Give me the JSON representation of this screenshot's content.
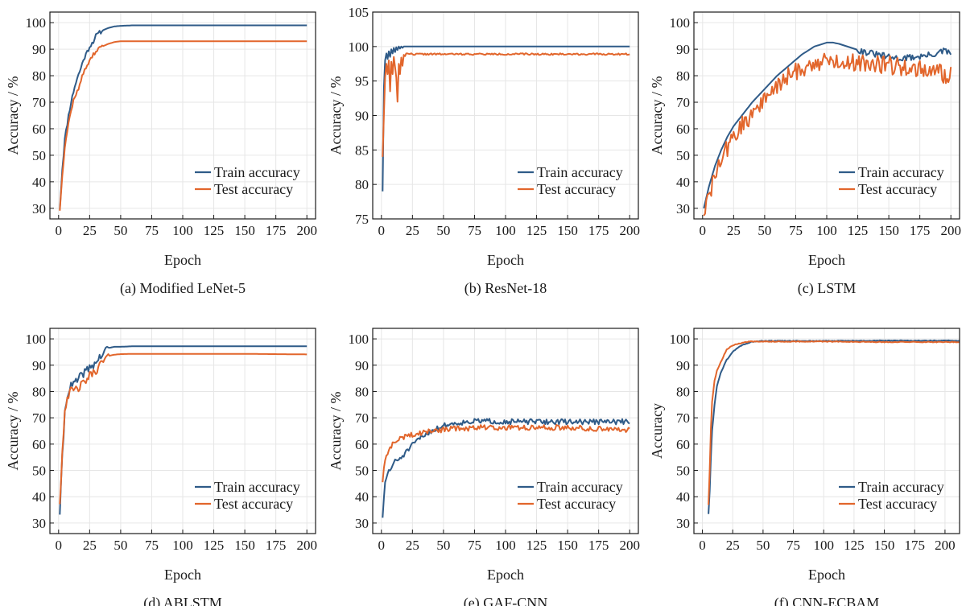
{
  "colors": {
    "train": "#2f5b88",
    "test": "#e2662c",
    "grid": "#e6e6e6",
    "axis": "#1a1a1a"
  },
  "chart_data": [
    {
      "id": "a",
      "type": "line",
      "caption": "(a) Modified LeNet-5",
      "xlabel": "Epoch",
      "ylabel": "Accuracy / %",
      "xlim": [
        -7,
        207
      ],
      "ylim": [
        26,
        104
      ],
      "xticks": [
        0,
        25,
        50,
        75,
        100,
        125,
        150,
        175,
        200
      ],
      "yticks": [
        30,
        40,
        50,
        60,
        70,
        80,
        90,
        100
      ],
      "legend": "lower-right",
      "series": [
        {
          "name": "Train accuracy",
          "x": [
            1,
            3,
            5,
            8,
            10,
            13,
            15,
            18,
            20,
            23,
            25,
            28,
            30,
            35,
            40,
            45,
            50,
            60,
            80,
            100,
            150,
            200
          ],
          "values": [
            30,
            45,
            56,
            65,
            70,
            76,
            79,
            83,
            86,
            89,
            91,
            93,
            95,
            97,
            98,
            98.6,
            98.8,
            99,
            99,
            99,
            99,
            99
          ],
          "noise": 0.8,
          "noiseUntil": 35,
          "seed": 11
        },
        {
          "name": "Test accuracy",
          "x": [
            1,
            3,
            5,
            8,
            10,
            13,
            15,
            18,
            20,
            23,
            25,
            28,
            30,
            35,
            40,
            45,
            50,
            60,
            80,
            100,
            150,
            200
          ],
          "values": [
            29.5,
            43,
            53,
            62,
            67,
            72,
            74,
            78,
            81,
            84,
            86,
            88,
            89,
            91,
            92,
            92.7,
            93,
            93,
            93,
            93,
            93,
            93
          ],
          "noise": 0.8,
          "noiseUntil": 35,
          "seed": 12
        }
      ]
    },
    {
      "id": "b",
      "type": "line",
      "caption": "(b) ResNet-18",
      "xlabel": "Epoch",
      "ylabel": "Accuracy / %",
      "xlim": [
        -7,
        207
      ],
      "ylim": [
        75,
        105
      ],
      "xticks": [
        0,
        25,
        50,
        75,
        100,
        125,
        150,
        175,
        200
      ],
      "yticks": [
        75,
        80,
        85,
        90,
        95,
        100,
        105
      ],
      "legend": "lower-right",
      "series": [
        {
          "name": "Train accuracy",
          "x": [
            1,
            2,
            3,
            4,
            5,
            6,
            7,
            8,
            9,
            10,
            11,
            12,
            13,
            14,
            15,
            16,
            17,
            18,
            19,
            20,
            22,
            25,
            50,
            100,
            150,
            200
          ],
          "values": [
            79,
            94,
            98,
            99,
            98.2,
            99.3,
            98.5,
            99.6,
            99,
            99.8,
            99.2,
            99.9,
            99.5,
            100,
            99.7,
            100,
            99.8,
            100,
            100,
            100,
            100,
            100,
            100,
            100,
            100,
            100
          ],
          "noise": 0,
          "seed": 21
        },
        {
          "name": "Test accuracy",
          "x": [
            1,
            2,
            3,
            4,
            5,
            6,
            7,
            8,
            9,
            10,
            11,
            12,
            13,
            14,
            15,
            16,
            17,
            18,
            19,
            20,
            22,
            25,
            50,
            100,
            150,
            200
          ],
          "values": [
            84,
            90,
            95.5,
            97.5,
            96,
            98,
            93.5,
            97.8,
            96,
            98.5,
            97,
            95.5,
            92,
            97.5,
            96,
            98.4,
            97.2,
            98.8,
            98.6,
            99,
            99,
            98.9,
            98.9,
            98.9,
            98.9,
            98.9
          ],
          "noise": 0.12,
          "noiseFrom": 22,
          "seed": 22
        }
      ]
    },
    {
      "id": "c",
      "type": "line",
      "caption": "(c) LSTM",
      "xlabel": "Epoch",
      "ylabel": "Accuracy / %",
      "xlim": [
        -7,
        207
      ],
      "ylim": [
        26,
        104
      ],
      "xticks": [
        0,
        25,
        50,
        75,
        100,
        125,
        150,
        175,
        200
      ],
      "yticks": [
        30,
        40,
        50,
        60,
        70,
        80,
        90,
        100
      ],
      "legend": "lower-right",
      "series": [
        {
          "name": "Train accuracy",
          "x": [
            1,
            5,
            10,
            15,
            20,
            25,
            30,
            40,
            50,
            60,
            70,
            80,
            90,
            100,
            105,
            110,
            120,
            130,
            140,
            150,
            160,
            170,
            180,
            190,
            195,
            200
          ],
          "values": [
            30,
            38,
            46,
            52,
            57,
            61,
            64,
            70,
            75,
            80,
            84,
            88,
            91,
            92.5,
            92.5,
            92,
            90.5,
            89,
            88,
            87,
            86.5,
            87,
            87.5,
            88.5,
            89.5,
            88
          ],
          "noise": 1.2,
          "noiseFrom": 125,
          "seed": 31
        },
        {
          "name": "Test accuracy",
          "x": [
            1,
            5,
            10,
            15,
            20,
            25,
            30,
            40,
            50,
            60,
            70,
            80,
            90,
            100,
            110,
            120,
            130,
            140,
            150,
            160,
            170,
            180,
            190,
            200
          ],
          "values": [
            29,
            34,
            42,
            48,
            53,
            57,
            60,
            66,
            71,
            76,
            80,
            83,
            84.5,
            85.5,
            85.5,
            85,
            85,
            84.5,
            84,
            83.5,
            83,
            82,
            81,
            80
          ],
          "noise": 3.5,
          "seed": 32
        }
      ]
    },
    {
      "id": "d",
      "type": "line",
      "caption": "(d) ABLSTM",
      "xlabel": "Epoch",
      "ylabel": "Accuracy / %",
      "xlim": [
        -7,
        207
      ],
      "ylim": [
        26,
        104
      ],
      "xticks": [
        0,
        25,
        50,
        75,
        100,
        125,
        150,
        175,
        200
      ],
      "yticks": [
        30,
        40,
        50,
        60,
        70,
        80,
        90,
        100
      ],
      "legend": "lower-right",
      "series": [
        {
          "name": "Train accuracy",
          "x": [
            1,
            3,
            5,
            7,
            10,
            15,
            20,
            25,
            30,
            35,
            40,
            45,
            50,
            60,
            100,
            150,
            200
          ],
          "values": [
            34,
            55,
            72,
            79,
            82,
            84,
            87,
            89,
            91,
            94,
            96.5,
            97,
            97,
            97.2,
            97.2,
            97.2,
            97.2
          ],
          "noise": 1.6,
          "noiseUntil": 40,
          "seed": 41
        },
        {
          "name": "Test accuracy",
          "x": [
            1,
            3,
            5,
            7,
            10,
            15,
            20,
            25,
            30,
            35,
            40,
            45,
            50,
            60,
            100,
            150,
            200
          ],
          "values": [
            38,
            57,
            73,
            78,
            80,
            81,
            83,
            86,
            88,
            91,
            93.5,
            94,
            94.2,
            94.3,
            94.3,
            94.3,
            94.1
          ],
          "noise": 1.6,
          "noiseUntil": 40,
          "seed": 42
        }
      ]
    },
    {
      "id": "e",
      "type": "line",
      "caption": "(e) GAF-CNN",
      "xlabel": "Epoch",
      "ylabel": "Accuracy / %",
      "xlim": [
        -7,
        207
      ],
      "ylim": [
        26,
        104
      ],
      "xticks": [
        0,
        25,
        50,
        75,
        100,
        125,
        150,
        175,
        200
      ],
      "yticks": [
        30,
        40,
        50,
        60,
        70,
        80,
        90,
        100
      ],
      "legend": "lower-right",
      "series": [
        {
          "name": "Train accuracy",
          "x": [
            1,
            3,
            5,
            8,
            10,
            15,
            20,
            25,
            30,
            40,
            50,
            60,
            70,
            80,
            100,
            150,
            200
          ],
          "values": [
            32.5,
            45,
            49,
            51,
            53,
            54.5,
            57,
            59.5,
            62,
            65,
            67,
            68,
            68.5,
            68.8,
            68.5,
            68.5,
            68.5
          ],
          "noise": 1.0,
          "seed": 51
        },
        {
          "name": "Test accuracy",
          "x": [
            1,
            3,
            5,
            8,
            10,
            15,
            20,
            25,
            30,
            40,
            50,
            60,
            70,
            80,
            100,
            150,
            200
          ],
          "values": [
            46,
            54,
            57,
            59,
            60.5,
            62,
            63,
            63.5,
            64,
            65,
            65.5,
            66,
            66,
            66.3,
            66.3,
            66.3,
            65.5
          ],
          "noise": 1.0,
          "seed": 52
        }
      ]
    },
    {
      "id": "f",
      "type": "line",
      "caption": "(f) CNN-ECBAM",
      "xlabel": "Epoch",
      "ylabel": "Accuracy",
      "xlim": [
        -7,
        212
      ],
      "ylim": [
        26,
        104
      ],
      "xticks": [
        0,
        25,
        50,
        75,
        100,
        125,
        150,
        175,
        200
      ],
      "yticks": [
        30,
        40,
        50,
        60,
        70,
        80,
        90,
        100
      ],
      "legend": "lower-right",
      "series": [
        {
          "name": "Train accuracy",
          "x": [
            5,
            6,
            7,
            8,
            10,
            12,
            15,
            18,
            20,
            25,
            30,
            35,
            40,
            45,
            50,
            100,
            150,
            212
          ],
          "values": [
            33.5,
            42,
            55,
            65,
            75,
            82,
            87,
            90,
            92,
            95,
            97,
            98,
            98.8,
            99,
            99.2,
            99.2,
            99.3,
            99.3
          ],
          "noise": 0.15,
          "seed": 61
        },
        {
          "name": "Test accuracy",
          "x": [
            5,
            6,
            7,
            8,
            10,
            12,
            15,
            18,
            20,
            25,
            30,
            35,
            40,
            45,
            50,
            100,
            150,
            212
          ],
          "values": [
            37,
            50,
            66,
            76,
            84,
            88,
            91,
            94,
            96,
            97.5,
            98.2,
            98.7,
            99,
            99,
            99,
            99,
            98.8,
            98.8
          ],
          "noise": 0.15,
          "seed": 62
        }
      ]
    }
  ]
}
